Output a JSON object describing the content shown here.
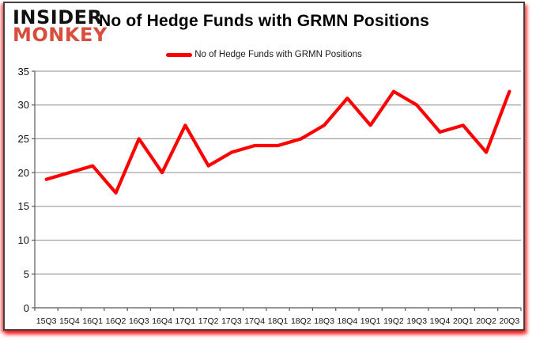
{
  "logo": {
    "line1": "INSIDER",
    "line2": "MONKEY",
    "monkey_color": "#da4c3b"
  },
  "header": {
    "title": "No of Hedge Funds with GRMN Positions"
  },
  "legend": {
    "label": "No of Hedge Funds with GRMN Positions",
    "swatch_color": "#ff0000"
  },
  "chart_data": {
    "type": "line",
    "title": "No of Hedge Funds with GRMN Positions",
    "series": [
      {
        "name": "No of Hedge Funds with GRMN Positions",
        "values": [
          19,
          20,
          21,
          17,
          25,
          20,
          27,
          21,
          23,
          24,
          24,
          25,
          27,
          31,
          27,
          32,
          30,
          26,
          27,
          23,
          32
        ]
      }
    ],
    "categories": [
      "15Q3",
      "15Q4",
      "16Q1",
      "16Q2",
      "16Q3",
      "16Q4",
      "17Q1",
      "17Q2",
      "17Q3",
      "17Q4",
      "18Q1",
      "18Q2",
      "18Q3",
      "18Q4",
      "19Q1",
      "19Q2",
      "19Q3",
      "19Q4",
      "20Q1",
      "20Q2",
      "20Q3"
    ],
    "yticks": [
      0,
      5,
      10,
      15,
      20,
      25,
      30,
      35
    ],
    "ylim": [
      0,
      35
    ],
    "xlabel": "",
    "ylabel": "",
    "grid": "horizontal-only",
    "legend_position": "top-center",
    "line_color": "#ff0000",
    "gridline_color": "#8c8c8c",
    "axis_color": "#595959"
  }
}
